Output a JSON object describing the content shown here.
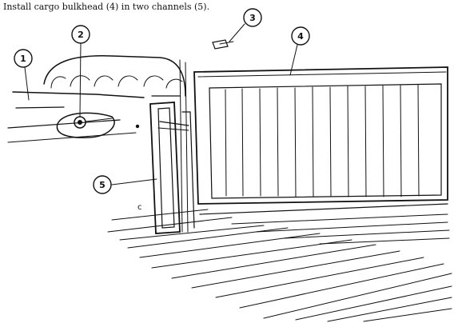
{
  "instruction": "Install cargo bulkhead (4) in two channels (5).",
  "callouts": [
    "1",
    "2",
    "3",
    "4",
    "5"
  ],
  "stray_marks": [
    "c"
  ]
}
